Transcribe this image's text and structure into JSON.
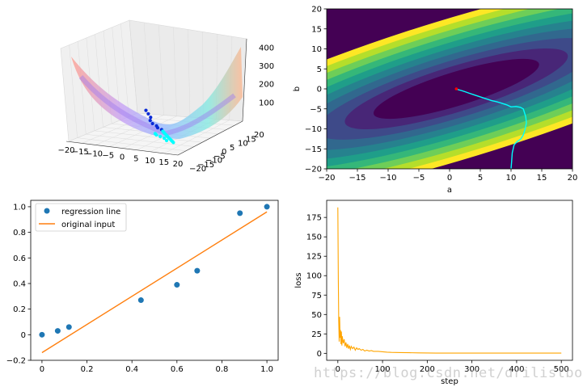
{
  "colors": {
    "scatter": "#1f77b4",
    "fit_line": "#ff7f0e",
    "loss_line": "#ffa500",
    "path": "#00ffff",
    "path_start": "#ff0000",
    "contour_levels": [
      "#440154",
      "#482677",
      "#3e4a89",
      "#31688e",
      "#26828e",
      "#1f9e89",
      "#35b779",
      "#6ece58",
      "#b5de2b",
      "#fde725"
    ]
  },
  "chart_data": [
    {
      "type": "surface3d",
      "title": "",
      "x_ticks": [
        "−20",
        "−15",
        "−10",
        "−5",
        "0",
        "5",
        "10",
        "15",
        "20"
      ],
      "y_ticks": [
        "−20",
        "−15",
        "−10",
        "−5",
        "0",
        "5",
        "10",
        "15",
        "20"
      ],
      "z_ticks": [
        "100",
        "200",
        "300",
        "400"
      ],
      "xlim": [
        -20,
        20
      ],
      "ylim": [
        -20,
        20
      ],
      "zlim": [
        0,
        450
      ],
      "descent_points": [
        [
          -10,
          12,
          40
        ],
        [
          -8,
          10,
          34
        ],
        [
          -6,
          8,
          28
        ],
        [
          -5,
          6,
          22
        ],
        [
          -3,
          4,
          18
        ],
        [
          -1,
          3,
          14
        ],
        [
          0,
          2,
          10
        ],
        [
          2,
          1,
          8
        ],
        [
          3,
          0,
          6
        ],
        [
          4,
          -1,
          5
        ],
        [
          5,
          -2,
          4
        ],
        [
          6,
          -3,
          4
        ],
        [
          7,
          -4,
          3
        ],
        [
          8,
          -5,
          3
        ],
        [
          9,
          -6,
          3
        ],
        [
          10,
          -7,
          3
        ],
        [
          11,
          -8,
          3
        ],
        [
          12,
          -9,
          3
        ],
        [
          2,
          -3,
          5
        ],
        [
          3,
          -4,
          4
        ],
        [
          5,
          -5,
          4
        ],
        [
          7,
          -6,
          3
        ],
        [
          9,
          -8,
          3
        ]
      ]
    },
    {
      "type": "contour",
      "xlabel": "a",
      "ylabel": "b",
      "xlim": [
        -20,
        20
      ],
      "ylim": [
        -20,
        20
      ],
      "x_ticks": [
        -20,
        -15,
        -10,
        -5,
        0,
        5,
        10,
        15,
        20
      ],
      "y_ticks": [
        -20,
        -15,
        -10,
        -5,
        0,
        5,
        10,
        15,
        20
      ],
      "minimum": [
        1.1,
        0.0
      ],
      "path": [
        [
          10,
          -20
        ],
        [
          10.1,
          -18
        ],
        [
          10.2,
          -16
        ],
        [
          10.5,
          -14
        ],
        [
          11,
          -13.2
        ],
        [
          11.6,
          -12.5
        ],
        [
          12,
          -11.5
        ],
        [
          12.3,
          -10
        ],
        [
          12.5,
          -8.5
        ],
        [
          12.4,
          -7
        ],
        [
          12.2,
          -6
        ],
        [
          12,
          -5
        ],
        [
          11.5,
          -4.6
        ],
        [
          10.8,
          -4.4
        ],
        [
          10,
          -4.5
        ],
        [
          9.3,
          -4
        ],
        [
          8.5,
          -3.6
        ],
        [
          7.6,
          -3.2
        ],
        [
          6.8,
          -2.9
        ],
        [
          6,
          -2.5
        ],
        [
          5,
          -2
        ],
        [
          4,
          -1.5
        ],
        [
          3.2,
          -1.1
        ],
        [
          2.5,
          -0.7
        ],
        [
          1.9,
          -0.4
        ],
        [
          1.4,
          -0.2
        ],
        [
          1.1,
          0
        ]
      ]
    },
    {
      "type": "scatter",
      "xlim": [
        -0.05,
        1.05
      ],
      "ylim": [
        -0.2,
        1.05
      ],
      "x_ticks": [
        0.0,
        0.2,
        0.4,
        0.6,
        0.8,
        1.0
      ],
      "y_ticks": [
        -0.2,
        0.0,
        0.2,
        0.4,
        0.6,
        0.8,
        1.0
      ],
      "legend": [
        "regression line",
        "original input"
      ],
      "points_x": [
        0.0,
        0.07,
        0.12,
        0.44,
        0.6,
        0.69,
        0.88,
        1.0
      ],
      "points_y": [
        0.0,
        0.03,
        0.06,
        0.27,
        0.39,
        0.5,
        0.95,
        1.0
      ],
      "line": {
        "x": [
          0.0,
          1.0
        ],
        "y": [
          -0.14,
          0.96
        ]
      }
    },
    {
      "type": "line",
      "xlabel": "step",
      "ylabel": "loss",
      "xlim": [
        -25,
        525
      ],
      "ylim": [
        -9,
        197
      ],
      "x_ticks": [
        0,
        100,
        200,
        300,
        400,
        500
      ],
      "y_ticks": [
        0,
        25,
        50,
        75,
        100,
        125,
        150,
        175
      ],
      "early_steps": [
        0,
        1,
        2,
        3,
        4,
        5,
        6,
        7,
        8,
        9,
        10,
        12,
        14,
        16,
        18,
        20,
        22,
        24,
        26,
        28,
        30,
        33,
        36,
        39,
        42,
        45,
        48,
        52,
        56,
        60,
        65,
        70,
        75,
        80,
        90,
        100,
        110,
        120,
        140,
        160,
        180,
        200
      ],
      "early_loss": [
        188,
        95,
        42,
        15,
        47,
        20,
        30,
        12,
        28,
        10,
        22,
        13,
        18,
        9,
        14,
        7,
        12,
        6,
        10,
        5,
        9,
        6,
        8,
        4,
        7,
        5,
        6,
        4,
        5,
        3,
        4,
        3,
        3.5,
        2.5,
        2.5,
        2,
        1.5,
        1.2,
        1,
        0.8,
        0.6,
        0.5
      ],
      "late_end_step": 500,
      "late_value": 0.3
    }
  ],
  "watermark": "https://blog.csdn.net/drilistbox"
}
